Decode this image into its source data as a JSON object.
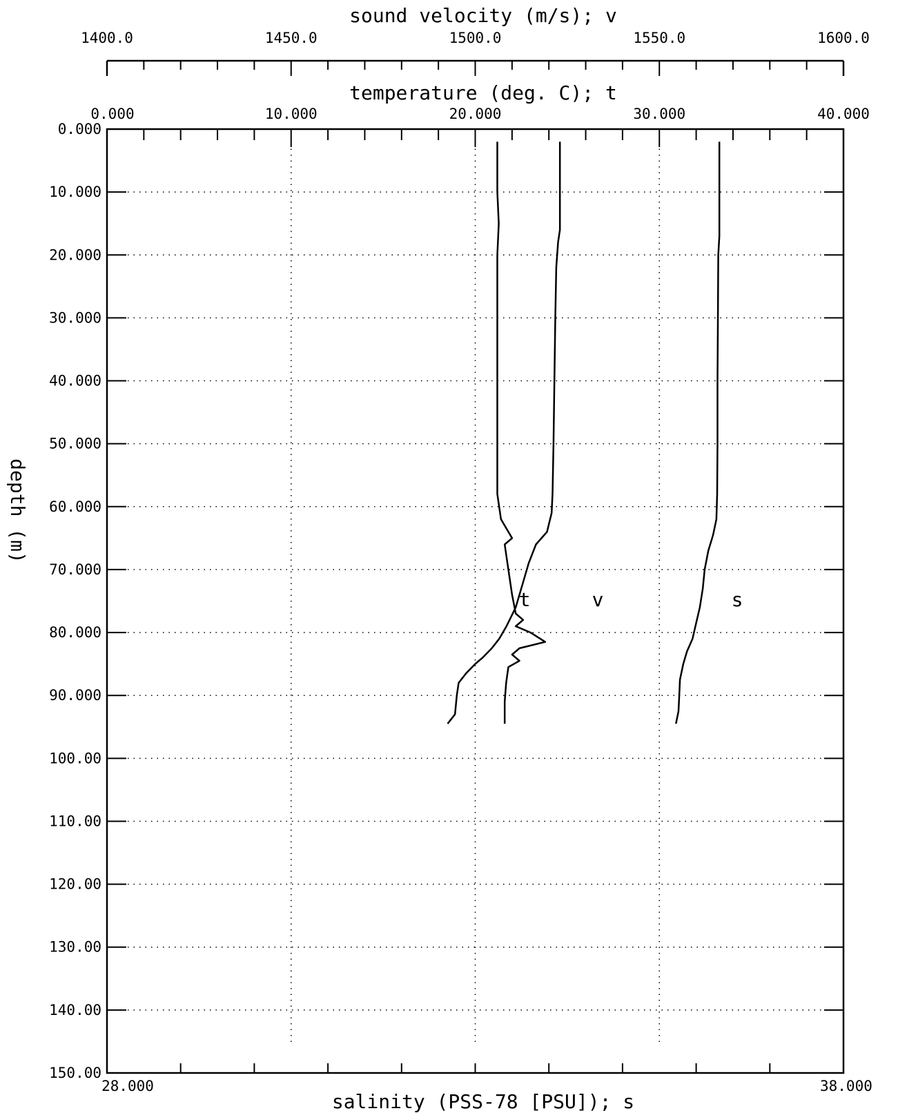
{
  "chart_data": {
    "type": "line",
    "plot": {
      "depth_axis": {
        "label": "depth (m)",
        "range": [
          0,
          150
        ],
        "inverted": true,
        "ticks": [
          0,
          10,
          20,
          30,
          40,
          50,
          60,
          70,
          80,
          90,
          100,
          110,
          120,
          130,
          140,
          150
        ],
        "tick_labels": [
          "0.000",
          "10.000",
          "20.000",
          "30.000",
          "40.000",
          "50.000",
          "60.000",
          "70.000",
          "80.000",
          "90.000",
          "100.00",
          "110.00",
          "120.00",
          "130.00",
          "140.00",
          "150.00"
        ]
      },
      "top_axis_1": {
        "label": "sound velocity (m/s); v",
        "range": [
          1400,
          1600
        ],
        "major_ticks": [
          1400,
          1450,
          1500,
          1550,
          1600
        ],
        "tick_labels": [
          "1400.0",
          "1450.0",
          "1500.0",
          "1550.0",
          "1600.0"
        ],
        "minor_step": 10
      },
      "top_axis_2": {
        "label": "temperature (deg. C); t",
        "range": [
          0,
          40
        ],
        "major_ticks": [
          0,
          10,
          20,
          30,
          40
        ],
        "tick_labels": [
          "0.000",
          "10.000",
          "20.000",
          "30.000",
          "40.000"
        ],
        "minor_step": 2
      },
      "bottom_axis": {
        "label": "salinity (PSS-78 [PSU]); s",
        "range": [
          28,
          38
        ],
        "major_ticks": [
          28,
          38
        ],
        "tick_labels": [
          "28.000",
          "38.000"
        ],
        "minor_step": 1
      },
      "grid": true,
      "grid_depths": [
        10,
        20,
        30,
        40,
        50,
        60,
        70,
        80,
        90,
        100,
        110,
        120,
        130,
        140
      ],
      "grid_temperatures": [
        10,
        20,
        30
      ]
    },
    "series": [
      {
        "name": "t",
        "axis": "temperature",
        "points": [
          [
            24.6,
            2
          ],
          [
            24.6,
            10
          ],
          [
            24.6,
            16
          ],
          [
            24.5,
            18
          ],
          [
            24.4,
            22
          ],
          [
            24.35,
            30
          ],
          [
            24.3,
            40
          ],
          [
            24.25,
            50
          ],
          [
            24.2,
            58
          ],
          [
            24.15,
            61
          ],
          [
            23.9,
            64
          ],
          [
            23.3,
            66
          ],
          [
            22.9,
            69
          ],
          [
            22.6,
            72
          ],
          [
            22.2,
            76
          ],
          [
            21.7,
            79
          ],
          [
            21.3,
            81
          ],
          [
            20.9,
            82.5
          ],
          [
            20.4,
            84
          ],
          [
            20.0,
            85
          ],
          [
            19.5,
            86.5
          ],
          [
            19.1,
            88
          ],
          [
            19.0,
            90
          ],
          [
            18.9,
            93
          ],
          [
            18.5,
            94.5
          ]
        ]
      },
      {
        "name": "v",
        "axis": "sound_velocity",
        "points": [
          [
            1566.3,
            2
          ],
          [
            1566.3,
            10
          ],
          [
            1566.3,
            17
          ],
          [
            1566.0,
            20
          ],
          [
            1565.9,
            30
          ],
          [
            1565.8,
            40
          ],
          [
            1565.8,
            50
          ],
          [
            1565.7,
            58
          ],
          [
            1565.5,
            62
          ],
          [
            1564.6,
            64.5
          ],
          [
            1563.3,
            67
          ],
          [
            1562.3,
            70
          ],
          [
            1561.8,
            73
          ],
          [
            1561.0,
            76
          ],
          [
            1559.8,
            79
          ],
          [
            1559.0,
            81
          ],
          [
            1557.5,
            83
          ],
          [
            1556.5,
            85
          ],
          [
            1555.6,
            87.5
          ],
          [
            1555.4,
            90
          ],
          [
            1555.2,
            92.5
          ],
          [
            1554.5,
            94.5
          ]
        ]
      },
      {
        "name": "s",
        "axis": "salinity",
        "points": [
          [
            33.3,
            2
          ],
          [
            33.3,
            10
          ],
          [
            33.32,
            15
          ],
          [
            33.3,
            20
          ],
          [
            33.3,
            30
          ],
          [
            33.3,
            40
          ],
          [
            33.3,
            50
          ],
          [
            33.3,
            58
          ],
          [
            33.35,
            62
          ],
          [
            33.45,
            64
          ],
          [
            33.5,
            65
          ],
          [
            33.4,
            66
          ],
          [
            33.45,
            70
          ],
          [
            33.5,
            74
          ],
          [
            33.55,
            77
          ],
          [
            33.65,
            78
          ],
          [
            33.55,
            79
          ],
          [
            33.75,
            80
          ],
          [
            33.95,
            81.5
          ],
          [
            33.6,
            82.5
          ],
          [
            33.5,
            83.5
          ],
          [
            33.6,
            84.5
          ],
          [
            33.45,
            85.5
          ],
          [
            33.42,
            88
          ],
          [
            33.4,
            91
          ],
          [
            33.4,
            94.5
          ]
        ]
      }
    ],
    "annotations": [
      "t",
      "v",
      "s"
    ]
  }
}
